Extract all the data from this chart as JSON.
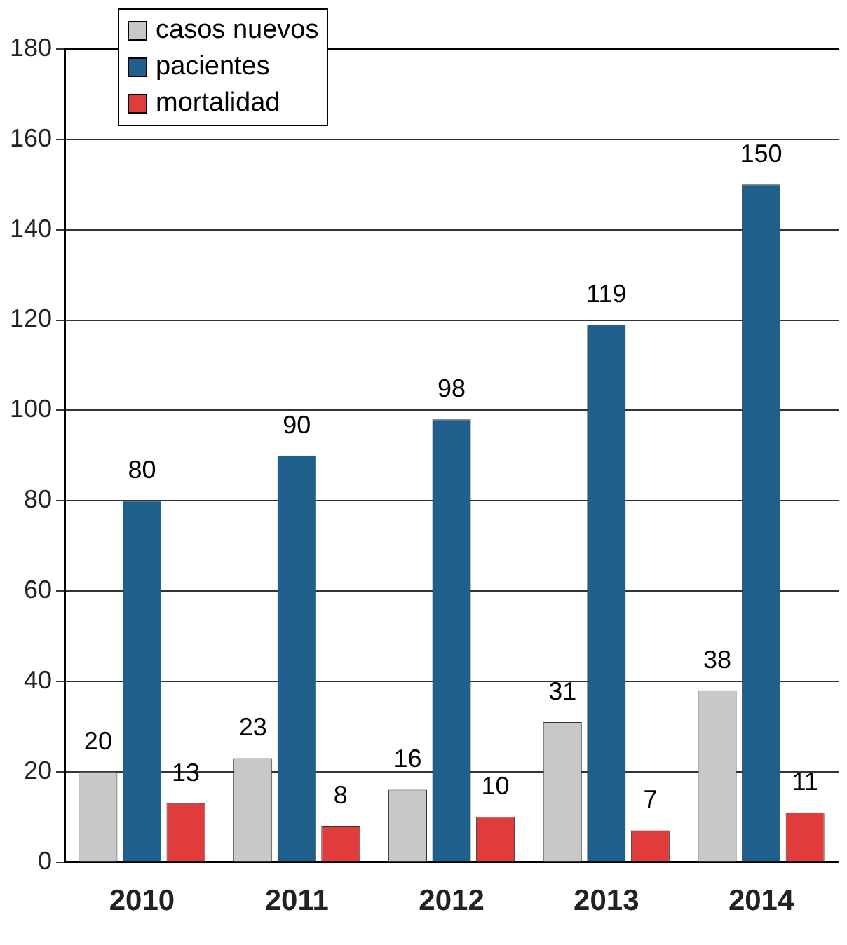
{
  "chart_data": {
    "type": "bar",
    "categories": [
      "2010",
      "2011",
      "2012",
      "2013",
      "2014"
    ],
    "series": [
      {
        "name": "casos nuevos",
        "color": "#c8c8c8",
        "values": [
          20,
          23,
          16,
          31,
          38
        ]
      },
      {
        "name": "pacientes",
        "color": "#1f5f8b",
        "values": [
          80,
          90,
          98,
          119,
          150
        ]
      },
      {
        "name": "mortalidad",
        "color": "#e03c3c",
        "values": [
          13,
          8,
          10,
          7,
          11
        ]
      }
    ],
    "ylim": [
      0,
      180
    ],
    "yticks": [
      0,
      20,
      40,
      60,
      80,
      100,
      120,
      140,
      160,
      180
    ],
    "grid": "y",
    "legend": "top left",
    "data_labels": true
  }
}
